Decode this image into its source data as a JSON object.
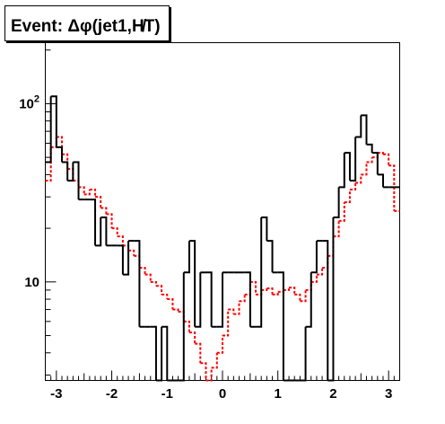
{
  "title": "Event: Δφ(jet1,H̸T)",
  "chart_data": {
    "type": "histogram",
    "title": "Event: Δφ(jet1,H̸T)",
    "xlabel": "",
    "ylabel": "",
    "xlim": [
      -3.2,
      3.2
    ],
    "ylim": [
      2.8,
      220
    ],
    "y_scale": "log",
    "x_ticks": [
      "-3",
      "-2",
      "-1",
      "0",
      "1",
      "2",
      "3"
    ],
    "y_ticks": [
      "10",
      "10^2"
    ],
    "bin_edges": [
      -3.2,
      -3.1,
      -3.0,
      -2.9,
      -2.8,
      -2.7,
      -2.6,
      -2.5,
      -2.4,
      -2.3,
      -2.2,
      -2.1,
      -2.0,
      -1.9,
      -1.8,
      -1.7,
      -1.6,
      -1.5,
      -1.4,
      -1.3,
      -1.2,
      -1.1,
      -1.0,
      -0.9,
      -0.8,
      -0.7,
      -0.6,
      -0.5,
      -0.4,
      -0.3,
      -0.2,
      -0.1,
      0.0,
      0.1,
      0.2,
      0.3,
      0.4,
      0.5,
      0.6,
      0.7,
      0.8,
      0.9,
      1.0,
      1.1,
      1.2,
      1.3,
      1.4,
      1.5,
      1.6,
      1.7,
      1.8,
      1.9,
      2.0,
      2.1,
      2.2,
      2.3,
      2.4,
      2.5,
      2.6,
      2.7,
      2.8,
      2.9,
      3.0,
      3.1,
      3.2
    ],
    "series": [
      {
        "color": "#000000",
        "style": "solid",
        "values": [
          47,
          110,
          57,
          47,
          37,
          47,
          29,
          29,
          29,
          16,
          23,
          16,
          16,
          16,
          11,
          17,
          17,
          5.6,
          5.6,
          5.6,
          2.8,
          5.6,
          2.8,
          2.8,
          2.8,
          11.3,
          17,
          5.6,
          11.3,
          11.3,
          5.6,
          5.6,
          11.3,
          11.3,
          11.3,
          11.3,
          11.3,
          5.6,
          5.6,
          23,
          17,
          11.3,
          11.3,
          2.8,
          2.8,
          2.8,
          2.8,
          5.6,
          11.3,
          17,
          17,
          2.8,
          23,
          34,
          53,
          37,
          65,
          86,
          59,
          53,
          40,
          34,
          34,
          34
        ]
      },
      {
        "color": "#ff0000",
        "style": "dotted",
        "values": [
          37,
          57,
          65,
          52,
          43,
          37,
          34,
          31,
          33,
          30,
          26,
          24,
          20,
          18,
          16,
          15,
          14,
          12,
          11,
          10,
          9.5,
          8.5,
          8,
          7,
          6.8,
          6,
          5.2,
          4.5,
          3.5,
          2.8,
          3.3,
          4,
          5,
          7,
          6.6,
          7.8,
          8.5,
          10,
          8.5,
          9,
          9.2,
          8.5,
          8.8,
          9,
          9.3,
          8.5,
          7.8,
          9,
          10,
          11,
          12,
          14,
          18,
          22,
          28,
          33,
          36,
          40,
          47,
          50,
          53,
          52,
          45,
          25
        ]
      }
    ]
  }
}
